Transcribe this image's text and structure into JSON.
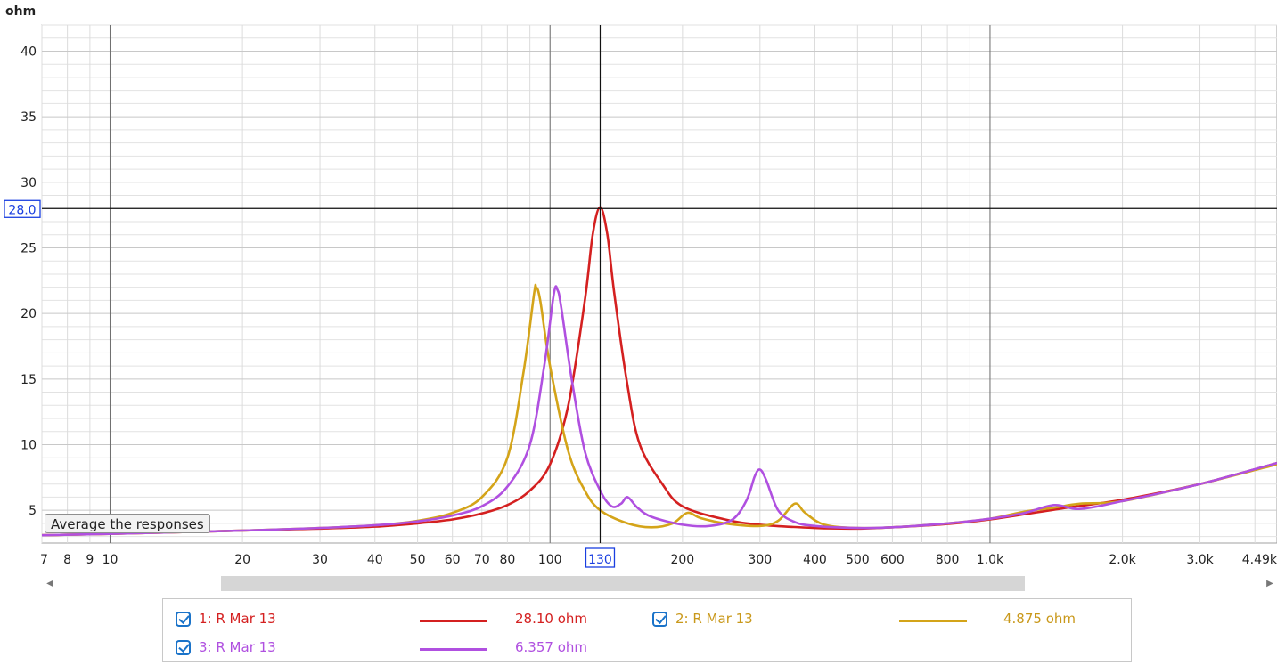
{
  "chart_data": {
    "type": "line",
    "ylabel": "ohm",
    "ylim": [
      2.5,
      42
    ],
    "xlim": [
      7,
      4490
    ],
    "x_scale": "log",
    "y_ticks": [
      5,
      10,
      15,
      20,
      25,
      30,
      35,
      40
    ],
    "x_ticks": [
      {
        "v": 7,
        "label": "7"
      },
      {
        "v": 8,
        "label": "8"
      },
      {
        "v": 9,
        "label": "9"
      },
      {
        "v": 10,
        "label": "10"
      },
      {
        "v": 20,
        "label": "20"
      },
      {
        "v": 30,
        "label": "30"
      },
      {
        "v": 40,
        "label": "40"
      },
      {
        "v": 50,
        "label": "50"
      },
      {
        "v": 60,
        "label": "60"
      },
      {
        "v": 70,
        "label": "70"
      },
      {
        "v": 80,
        "label": "80"
      },
      {
        "v": 100,
        "label": "100"
      },
      {
        "v": 200,
        "label": "200"
      },
      {
        "v": 300,
        "label": "300"
      },
      {
        "v": 400,
        "label": "400"
      },
      {
        "v": 500,
        "label": "500"
      },
      {
        "v": 600,
        "label": "600"
      },
      {
        "v": 800,
        "label": "800"
      },
      {
        "v": 1000,
        "label": "1.0k"
      },
      {
        "v": 2000,
        "label": "2.0k"
      },
      {
        "v": 3000,
        "label": "3.0k"
      },
      {
        "v": 4490,
        "label": "4.49k"
      }
    ],
    "cursor": {
      "x": 130,
      "y": 28.0,
      "x_label": "130",
      "y_label": "28.0"
    },
    "grid": true,
    "legend_position": "bottom",
    "series": [
      {
        "name": "1: R Mar 13",
        "color": "#d42020",
        "value_label": "28.10 ohm",
        "points": [
          [
            7,
            3.1
          ],
          [
            10,
            3.2
          ],
          [
            20,
            3.45
          ],
          [
            30,
            3.6
          ],
          [
            40,
            3.75
          ],
          [
            50,
            4.0
          ],
          [
            60,
            4.3
          ],
          [
            70,
            4.75
          ],
          [
            80,
            5.4
          ],
          [
            90,
            6.5
          ],
          [
            100,
            8.5
          ],
          [
            110,
            13.0
          ],
          [
            120,
            21.0
          ],
          [
            125,
            26.0
          ],
          [
            130,
            28.1
          ],
          [
            135,
            26.0
          ],
          [
            140,
            21.5
          ],
          [
            150,
            14.5
          ],
          [
            160,
            10.0
          ],
          [
            180,
            7.0
          ],
          [
            200,
            5.3
          ],
          [
            250,
            4.3
          ],
          [
            300,
            3.9
          ],
          [
            400,
            3.65
          ],
          [
            500,
            3.6
          ],
          [
            600,
            3.7
          ],
          [
            800,
            3.95
          ],
          [
            1000,
            4.3
          ],
          [
            1500,
            5.2
          ],
          [
            2000,
            5.8
          ],
          [
            3000,
            7.0
          ],
          [
            4490,
            8.6
          ]
        ]
      },
      {
        "name": "2: R Mar 13",
        "color": "#d4a419",
        "value_label": "4.875 ohm",
        "points": [
          [
            7,
            3.1
          ],
          [
            10,
            3.2
          ],
          [
            20,
            3.45
          ],
          [
            30,
            3.65
          ],
          [
            40,
            3.85
          ],
          [
            50,
            4.2
          ],
          [
            60,
            4.8
          ],
          [
            70,
            6.0
          ],
          [
            80,
            9.0
          ],
          [
            87,
            15.5
          ],
          [
            92,
            21.5
          ],
          [
            93,
            22.0
          ],
          [
            95,
            21.0
          ],
          [
            100,
            16.0
          ],
          [
            110,
            9.5
          ],
          [
            120,
            6.5
          ],
          [
            130,
            5.0
          ],
          [
            150,
            4.0
          ],
          [
            170,
            3.7
          ],
          [
            190,
            4.0
          ],
          [
            205,
            4.8
          ],
          [
            220,
            4.4
          ],
          [
            250,
            4.0
          ],
          [
            300,
            3.8
          ],
          [
            330,
            4.2
          ],
          [
            360,
            5.5
          ],
          [
            380,
            4.8
          ],
          [
            420,
            3.9
          ],
          [
            500,
            3.65
          ],
          [
            600,
            3.7
          ],
          [
            800,
            4.0
          ],
          [
            1000,
            4.35
          ],
          [
            1200,
            4.9
          ],
          [
            1400,
            5.2
          ],
          [
            1600,
            5.5
          ],
          [
            2000,
            5.7
          ],
          [
            3000,
            7.0
          ],
          [
            4490,
            8.5
          ]
        ]
      },
      {
        "name": "3: R Mar 13",
        "color": "#b050e0",
        "value_label": "6.357 ohm",
        "points": [
          [
            7,
            3.1
          ],
          [
            10,
            3.2
          ],
          [
            20,
            3.45
          ],
          [
            30,
            3.65
          ],
          [
            40,
            3.85
          ],
          [
            50,
            4.15
          ],
          [
            60,
            4.6
          ],
          [
            70,
            5.3
          ],
          [
            80,
            6.8
          ],
          [
            90,
            10.0
          ],
          [
            97,
            16.0
          ],
          [
            102,
            21.5
          ],
          [
            104,
            21.8
          ],
          [
            106,
            20.5
          ],
          [
            112,
            15.0
          ],
          [
            120,
            9.5
          ],
          [
            130,
            6.5
          ],
          [
            138,
            5.3
          ],
          [
            145,
            5.5
          ],
          [
            150,
            6.0
          ],
          [
            158,
            5.2
          ],
          [
            170,
            4.5
          ],
          [
            200,
            3.9
          ],
          [
            230,
            3.8
          ],
          [
            260,
            4.3
          ],
          [
            280,
            5.8
          ],
          [
            292,
            7.6
          ],
          [
            300,
            8.1
          ],
          [
            310,
            7.3
          ],
          [
            330,
            5.0
          ],
          [
            360,
            4.1
          ],
          [
            400,
            3.8
          ],
          [
            500,
            3.65
          ],
          [
            600,
            3.7
          ],
          [
            800,
            4.0
          ],
          [
            1000,
            4.35
          ],
          [
            1200,
            4.8
          ],
          [
            1400,
            5.4
          ],
          [
            1600,
            5.1
          ],
          [
            2000,
            5.7
          ],
          [
            3000,
            7.0
          ],
          [
            4490,
            8.6
          ]
        ]
      }
    ]
  },
  "tooltip_text": "Average the responses",
  "legend": [
    {
      "label": "1: R Mar 13",
      "color": "#d42020",
      "value": "28.10 ohm"
    },
    {
      "label": "2: R Mar 13",
      "color": "#d4a419",
      "value": "4.875 ohm"
    },
    {
      "label": "3: R Mar 13",
      "color": "#b050e0",
      "value": "6.357 ohm"
    }
  ]
}
